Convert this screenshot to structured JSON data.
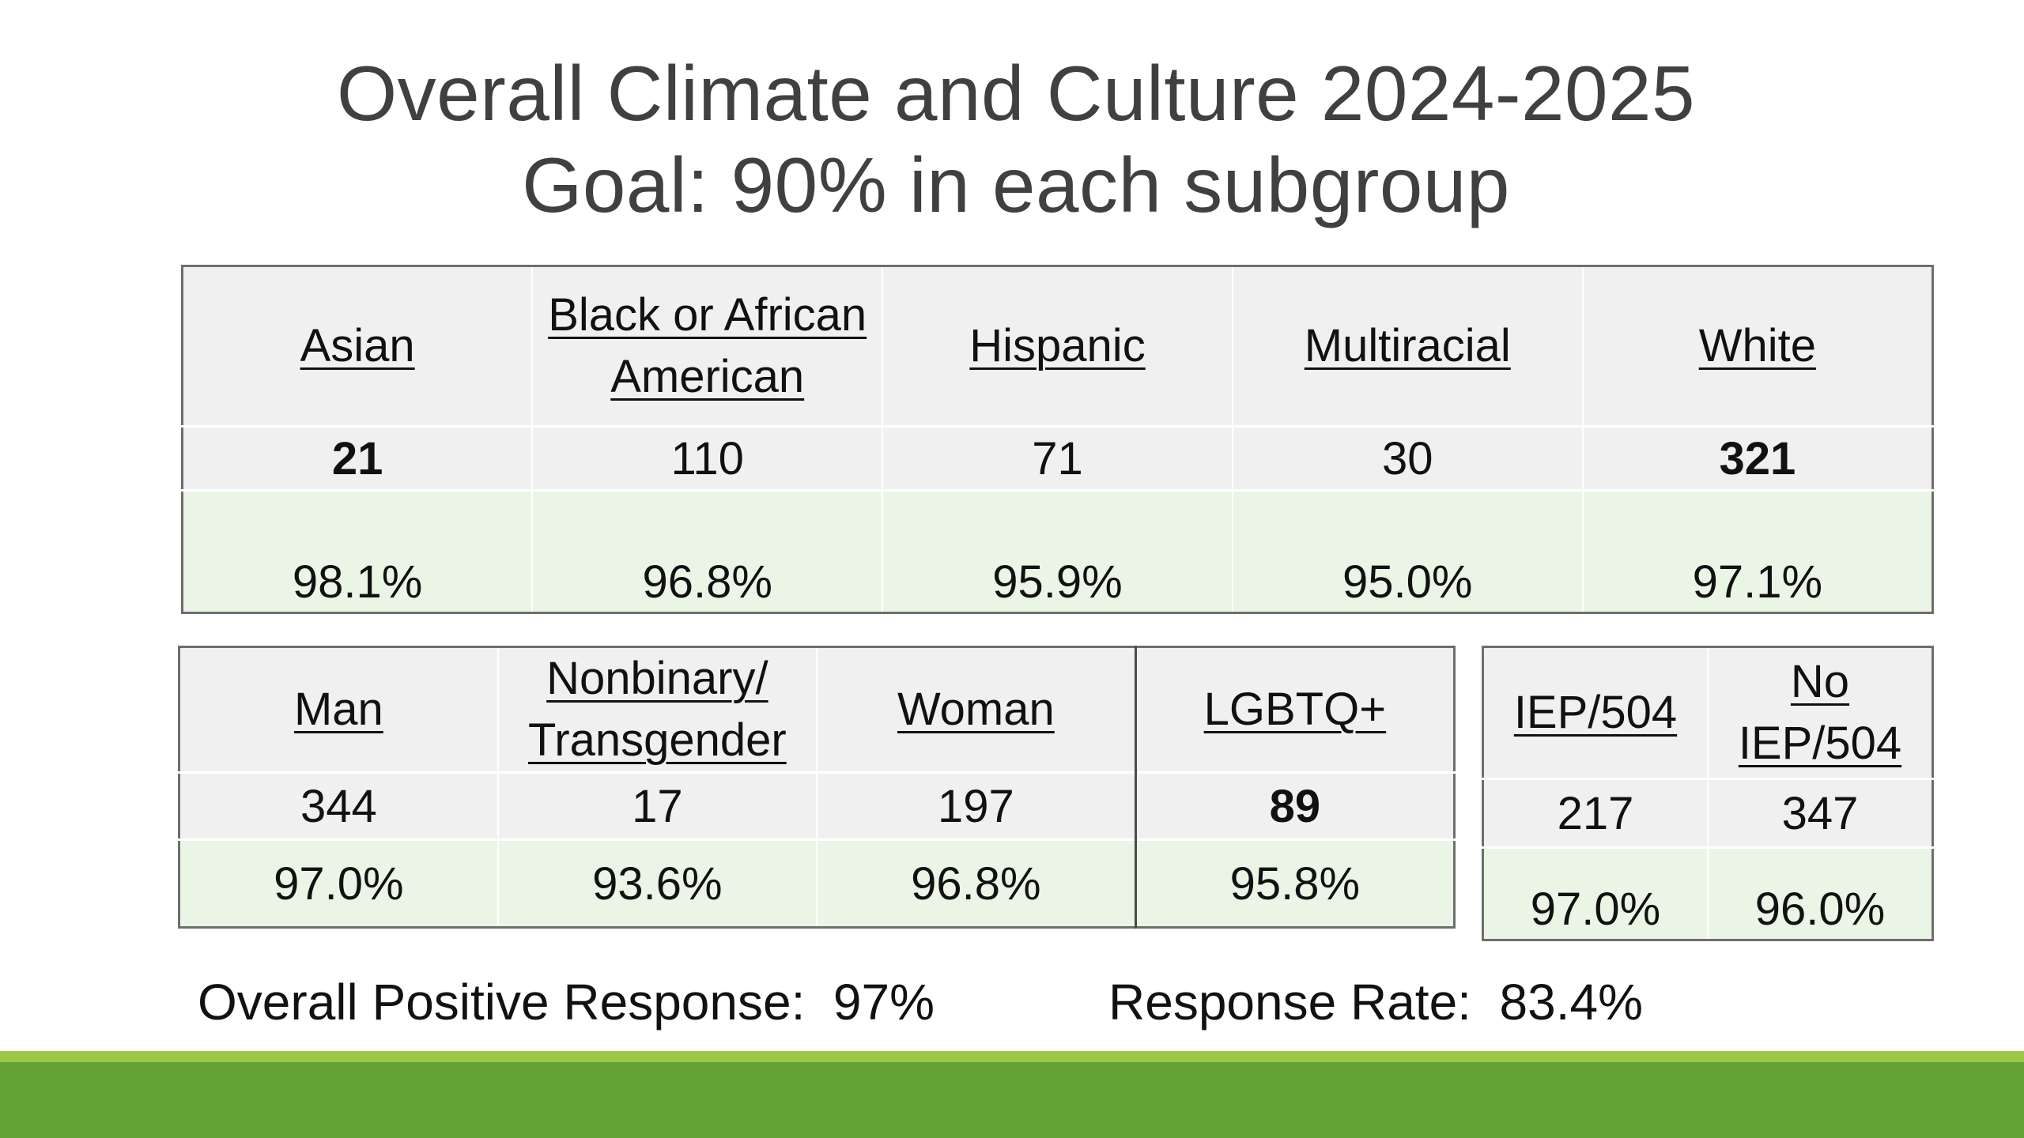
{
  "title": {
    "line1": "Overall Climate and Culture 2024-2025",
    "line2": "Goal:  90% in each subgroup"
  },
  "race_table": {
    "columns": [
      {
        "label": "Asian",
        "count": "21",
        "percent": "98.1%"
      },
      {
        "label": "Black or African American",
        "count": "110",
        "percent": "96.8%"
      },
      {
        "label": "Hispanic",
        "count": "71",
        "percent": "95.9%"
      },
      {
        "label": "Multiracial",
        "count": "30",
        "percent": "95.0%"
      },
      {
        "label": "White",
        "count": "321",
        "percent": "97.1%"
      }
    ]
  },
  "gender_table": {
    "columns": [
      {
        "label": "Man",
        "count": "344",
        "percent": "97.0%"
      },
      {
        "label": "Nonbinary/ Transgender",
        "count": "17",
        "percent": "93.6%"
      },
      {
        "label": "Woman",
        "count": "197",
        "percent": "96.8%"
      },
      {
        "label": "LGBTQ+",
        "count": "89",
        "percent": "95.8%"
      }
    ]
  },
  "iep_table": {
    "columns": [
      {
        "label": "IEP/504",
        "count": "217",
        "percent": "97.0%"
      },
      {
        "label": "No IEP/504",
        "count": "347",
        "percent": "96.0%"
      }
    ]
  },
  "summary": {
    "overall_label": "Overall Positive Response:",
    "overall_value": "97%",
    "rate_label": "Response Rate:",
    "rate_value": "83.4%"
  },
  "colors": {
    "header_fill": "#f0f0f0",
    "percent_fill": "#ebf5e6",
    "footer_bar": "#65a236",
    "footer_stripe": "#9bc846",
    "title_text": "#404040"
  }
}
